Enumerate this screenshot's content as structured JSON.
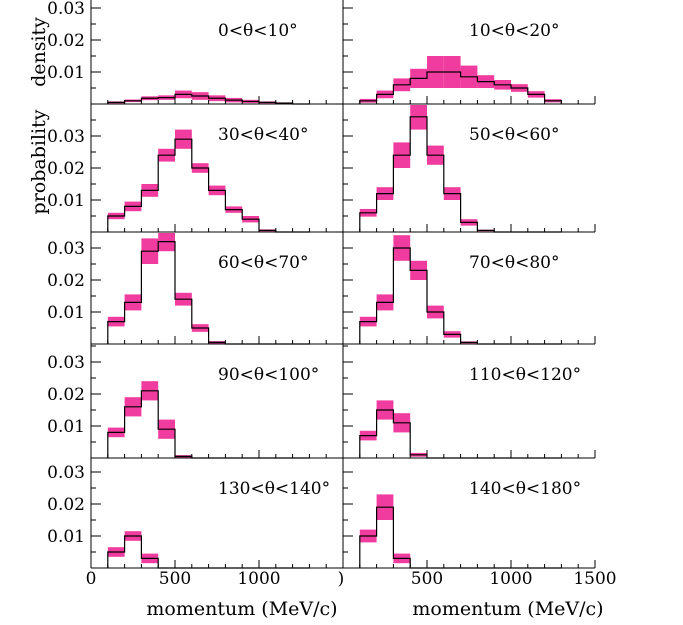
{
  "chart_data": {
    "type": "histogram-grid",
    "x_axis_title": "momentum (MeV/c)",
    "y_axis_titles": [
      "density",
      "probability"
    ],
    "xlim": [
      0,
      1500
    ],
    "ylim": [
      0,
      0.038
    ],
    "x_ticks": [
      0,
      500,
      1000,
      1500
    ],
    "x_tick_labels_left": [
      "0",
      "500",
      "1000"
    ],
    "x_tick_labels_right": [
      ")",
      "500",
      "1000",
      "1500"
    ],
    "y_ticks": [
      0.01,
      0.02,
      0.03
    ],
    "y_tick_labels": [
      "0.01",
      "0.02",
      "0.03"
    ],
    "bins": [
      [
        100,
        200
      ],
      [
        200,
        300
      ],
      [
        300,
        400
      ],
      [
        400,
        500
      ],
      [
        500,
        600
      ],
      [
        600,
        700
      ],
      [
        700,
        800
      ],
      [
        800,
        900
      ],
      [
        900,
        1000
      ],
      [
        1000,
        1100
      ],
      [
        1100,
        1200
      ],
      [
        1200,
        1300
      ]
    ],
    "panels": [
      {
        "label": "0<θ<10°",
        "values": [
          0.0005,
          0.001,
          0.0018,
          0.002,
          0.003,
          0.0025,
          0.0018,
          0.0012,
          0.0008,
          0.0005,
          0.0003,
          0
        ],
        "err": [
          0.0003,
          0.0004,
          0.0006,
          0.0007,
          0.0012,
          0.0012,
          0.0009,
          0.0007,
          0.0005,
          0.0003,
          0.0002,
          0
        ]
      },
      {
        "label": "10<θ<20°",
        "values": [
          0.001,
          0.003,
          0.006,
          0.008,
          0.01,
          0.01,
          0.0085,
          0.007,
          0.006,
          0.005,
          0.003,
          0.001
        ],
        "err": [
          0.0006,
          0.0012,
          0.002,
          0.003,
          0.005,
          0.005,
          0.0035,
          0.002,
          0.0015,
          0.0012,
          0.001,
          0.0005
        ]
      },
      {
        "label": "30<θ<40°",
        "values": [
          0.005,
          0.008,
          0.013,
          0.024,
          0.029,
          0.02,
          0.013,
          0.007,
          0.004,
          0.0005,
          0,
          0
        ],
        "err": [
          0.001,
          0.0015,
          0.002,
          0.002,
          0.003,
          0.0015,
          0.0015,
          0.001,
          0.001,
          0.0003,
          0,
          0
        ]
      },
      {
        "label": "50<θ<60°",
        "values": [
          0.006,
          0.012,
          0.024,
          0.036,
          0.024,
          0.012,
          0.003,
          0.0005,
          0,
          0,
          0,
          0
        ],
        "err": [
          0.0012,
          0.002,
          0.004,
          0.004,
          0.003,
          0.002,
          0.001,
          0.0002,
          0,
          0,
          0,
          0
        ]
      },
      {
        "label": "60<θ<70°",
        "values": [
          0.007,
          0.013,
          0.029,
          0.032,
          0.014,
          0.005,
          0.0005,
          0,
          0,
          0,
          0,
          0
        ],
        "err": [
          0.0015,
          0.0025,
          0.004,
          0.003,
          0.002,
          0.0012,
          0.0004,
          0,
          0,
          0,
          0,
          0
        ]
      },
      {
        "label": "70<θ<80°",
        "values": [
          0.007,
          0.013,
          0.03,
          0.023,
          0.01,
          0.003,
          0.0005,
          0,
          0,
          0,
          0,
          0
        ],
        "err": [
          0.0015,
          0.0025,
          0.004,
          0.003,
          0.002,
          0.001,
          0.0003,
          0,
          0,
          0,
          0,
          0
        ]
      },
      {
        "label": "90<θ<100°",
        "values": [
          0.008,
          0.016,
          0.021,
          0.009,
          0.0005,
          0,
          0,
          0,
          0,
          0,
          0,
          0
        ],
        "err": [
          0.0015,
          0.003,
          0.003,
          0.003,
          0.0004,
          0,
          0,
          0,
          0,
          0,
          0,
          0
        ]
      },
      {
        "label": "110<θ<120°",
        "values": [
          0.007,
          0.015,
          0.011,
          0.001,
          0,
          0,
          0,
          0,
          0,
          0,
          0,
          0
        ],
        "err": [
          0.0015,
          0.003,
          0.003,
          0.0006,
          0,
          0,
          0,
          0,
          0,
          0,
          0,
          0
        ]
      },
      {
        "label": "130<θ<140°",
        "values": [
          0.005,
          0.01,
          0.003,
          0,
          0,
          0,
          0,
          0,
          0,
          0,
          0,
          0
        ],
        "err": [
          0.0015,
          0.0015,
          0.0015,
          0,
          0,
          0,
          0,
          0,
          0,
          0,
          0,
          0
        ]
      },
      {
        "label": "140<θ<180°",
        "values": [
          0.01,
          0.019,
          0.003,
          0,
          0,
          0,
          0,
          0,
          0,
          0,
          0,
          0
        ],
        "err": [
          0.002,
          0.004,
          0.0015,
          0,
          0,
          0,
          0,
          0,
          0,
          0,
          0,
          0
        ]
      }
    ],
    "colors": {
      "band": "#f03c9e",
      "line": "#000000",
      "frame": "#000000"
    },
    "grid": false,
    "legend": "none"
  }
}
